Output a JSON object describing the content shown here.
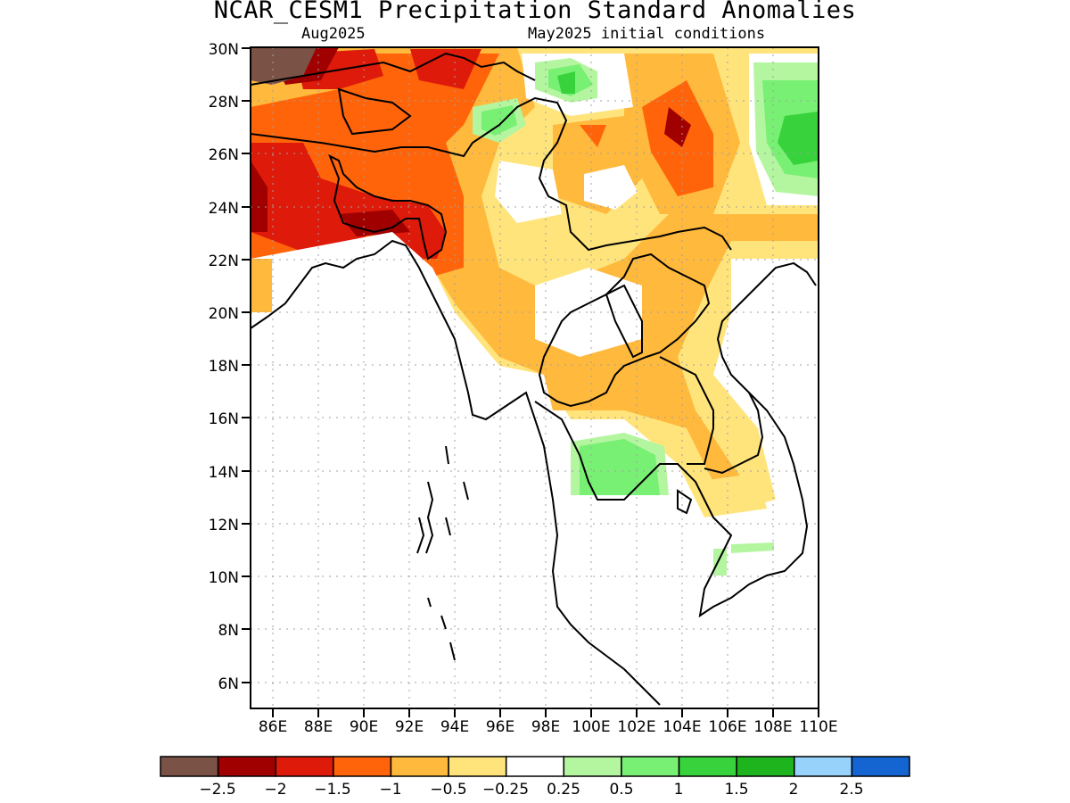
{
  "title": "NCAR_CESM1 Precipitation Standard Anomalies",
  "target_month": "Aug2025",
  "init_conditions": "May2025 initial conditions",
  "map": {
    "lon_range": [
      85,
      110
    ],
    "lat_range": [
      5,
      30
    ],
    "lat_ticks": [
      "30N",
      "28N",
      "26N",
      "24N",
      "22N",
      "20N",
      "18N",
      "16N",
      "14N",
      "12N",
      "10N",
      "8N",
      "6N"
    ],
    "lon_ticks": [
      "86E",
      "88E",
      "90E",
      "92E",
      "94E",
      "96E",
      "98E",
      "100E",
      "102E",
      "104E",
      "106E",
      "108E",
      "110E"
    ]
  },
  "legend": {
    "colors": [
      "#7b5246",
      "#a00000",
      "#de1a0a",
      "#ff640a",
      "#ffb93c",
      "#ffe47c",
      "#ffffff",
      "#b4f5a0",
      "#78f073",
      "#37d23c",
      "#1eb41e",
      "#96d2fa",
      "#1464d2"
    ],
    "labels": [
      "−2.5",
      "−2",
      "−1.5",
      "−1",
      "−0.5",
      "−0.25",
      "0.25",
      "0.5",
      "1",
      "1.5",
      "2",
      "2.5"
    ]
  }
}
